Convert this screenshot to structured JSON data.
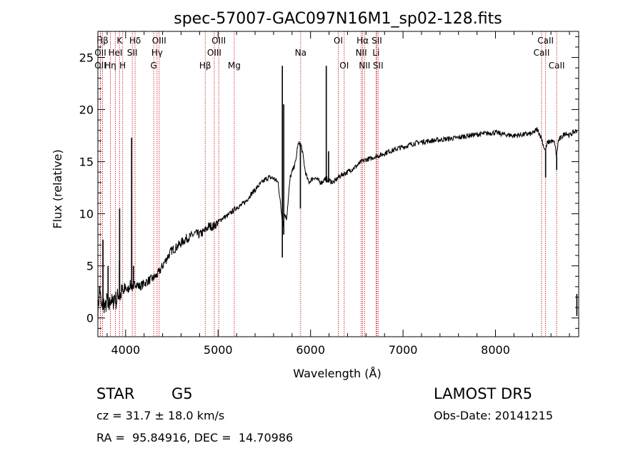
{
  "chart_data": {
    "type": "line",
    "title": "spec-57007-GAC097N16M1_sp02-128.fits",
    "xlabel": "Wavelength (Å)",
    "ylabel": "Flux (relative)",
    "xlim": [
      3700,
      8900
    ],
    "ylim": [
      -1.8,
      27.5
    ],
    "xticks": [
      4000,
      5000,
      6000,
      7000,
      8000
    ],
    "yticks": [
      0,
      5,
      10,
      15,
      20,
      25
    ],
    "grid": false,
    "series": [
      {
        "values": [
          [
            3700,
            0.5
          ],
          [
            3720,
            3.0
          ],
          [
            3740,
            0.8
          ],
          [
            3760,
            1.5
          ],
          [
            3780,
            0.9
          ],
          [
            3800,
            1.8
          ],
          [
            3820,
            1.0
          ],
          [
            3840,
            2.0
          ],
          [
            3860,
            1.2
          ],
          [
            3880,
            2.2
          ],
          [
            3900,
            1.5
          ],
          [
            3920,
            2.4
          ],
          [
            3940,
            2.0
          ],
          [
            3960,
            2.6
          ],
          [
            3980,
            2.3
          ],
          [
            4000,
            3.0
          ],
          [
            4020,
            2.6
          ],
          [
            4050,
            3.2
          ],
          [
            4080,
            2.8
          ],
          [
            4100,
            3.4
          ],
          [
            4150,
            3.0
          ],
          [
            4200,
            3.3
          ],
          [
            4250,
            3.6
          ],
          [
            4300,
            3.8
          ],
          [
            4350,
            4.2
          ],
          [
            4400,
            5.0
          ],
          [
            4450,
            5.8
          ],
          [
            4500,
            6.5
          ],
          [
            4550,
            6.8
          ],
          [
            4600,
            7.2
          ],
          [
            4650,
            7.6
          ],
          [
            4700,
            7.8
          ],
          [
            4750,
            8.1
          ],
          [
            4800,
            8.0
          ],
          [
            4850,
            8.3
          ],
          [
            4900,
            8.8
          ],
          [
            4950,
            8.8
          ],
          [
            5000,
            9.2
          ],
          [
            5050,
            9.6
          ],
          [
            5100,
            9.8
          ],
          [
            5150,
            10.2
          ],
          [
            5200,
            10.6
          ],
          [
            5250,
            10.8
          ],
          [
            5300,
            11.2
          ],
          [
            5350,
            11.8
          ],
          [
            5400,
            12.3
          ],
          [
            5450,
            12.8
          ],
          [
            5500,
            13.2
          ],
          [
            5550,
            13.5
          ],
          [
            5600,
            13.4
          ],
          [
            5650,
            13.0
          ],
          [
            5680,
            10.5
          ],
          [
            5700,
            9.0
          ],
          [
            5720,
            10.0
          ],
          [
            5740,
            9.5
          ],
          [
            5760,
            11.5
          ],
          [
            5780,
            13.5
          ],
          [
            5800,
            14.0
          ],
          [
            5820,
            14.5
          ],
          [
            5840,
            15.0
          ],
          [
            5860,
            16.5
          ],
          [
            5880,
            16.8
          ],
          [
            5900,
            16.5
          ],
          [
            5920,
            15.5
          ],
          [
            5940,
            14.2
          ],
          [
            5960,
            13.5
          ],
          [
            5980,
            13.0
          ],
          [
            6000,
            13.2
          ],
          [
            6040,
            13.5
          ],
          [
            6080,
            13.2
          ],
          [
            6120,
            13.0
          ],
          [
            6160,
            13.4
          ],
          [
            6200,
            13.2
          ],
          [
            6250,
            13.0
          ],
          [
            6300,
            13.5
          ],
          [
            6350,
            13.8
          ],
          [
            6400,
            14.0
          ],
          [
            6450,
            14.3
          ],
          [
            6500,
            14.6
          ],
          [
            6550,
            15.0
          ],
          [
            6600,
            15.2
          ],
          [
            6650,
            15.3
          ],
          [
            6700,
            15.5
          ],
          [
            6750,
            15.6
          ],
          [
            6800,
            15.8
          ],
          [
            6850,
            16.0
          ],
          [
            6900,
            16.1
          ],
          [
            6950,
            16.3
          ],
          [
            7000,
            16.4
          ],
          [
            7100,
            16.7
          ],
          [
            7200,
            16.9
          ],
          [
            7300,
            17.0
          ],
          [
            7400,
            17.1
          ],
          [
            7500,
            17.2
          ],
          [
            7600,
            17.3
          ],
          [
            7700,
            17.5
          ],
          [
            7800,
            17.6
          ],
          [
            7900,
            17.7
          ],
          [
            8000,
            17.8
          ],
          [
            8100,
            17.6
          ],
          [
            8200,
            17.5
          ],
          [
            8300,
            17.6
          ],
          [
            8400,
            17.7
          ],
          [
            8450,
            18.1
          ],
          [
            8480,
            17.6
          ],
          [
            8500,
            17.2
          ],
          [
            8520,
            16.5
          ],
          [
            8540,
            16.0
          ],
          [
            8560,
            16.8
          ],
          [
            8600,
            17.0
          ],
          [
            8640,
            16.8
          ],
          [
            8660,
            15.5
          ],
          [
            8680,
            17.0
          ],
          [
            8720,
            17.4
          ],
          [
            8760,
            17.8
          ],
          [
            8800,
            17.5
          ],
          [
            8840,
            17.8
          ],
          [
            8880,
            18.0
          ]
        ]
      }
    ],
    "spikes": [
      [
        3755,
        0.8,
        7.5
      ],
      [
        3810,
        1.0,
        5.0
      ],
      [
        3935,
        2.0,
        10.5
      ],
      [
        4065,
        2.8,
        17.3
      ],
      [
        4085,
        2.8,
        5.0
      ],
      [
        5695,
        5.8,
        24.2
      ],
      [
        5710,
        8.0,
        20.5
      ],
      [
        6170,
        13.0,
        24.2
      ],
      [
        6195,
        13.0,
        16.0
      ],
      [
        8880,
        0.2,
        2.3
      ]
    ],
    "absorptions": [
      [
        3933,
        5.5
      ],
      [
        5890,
        10.5
      ],
      [
        8542,
        13.5
      ],
      [
        8662,
        14.2
      ]
    ],
    "lines": [
      {
        "label": "Hβ",
        "x": 3750,
        "row": 0
      },
      {
        "label": "OII",
        "x": 3727,
        "row": 1
      },
      {
        "label": "OII",
        "x": 3727,
        "row": 2
      },
      {
        "label": "K",
        "x": 3934,
        "row": 0
      },
      {
        "label": "HeI",
        "x": 3889,
        "row": 1
      },
      {
        "label": "Hη",
        "x": 3835,
        "row": 2
      },
      {
        "label": "Hδ",
        "x": 4102,
        "row": 0
      },
      {
        "label": "SII",
        "x": 4072,
        "row": 1
      },
      {
        "label": "H",
        "x": 3968,
        "row": 2
      },
      {
        "label": "OIII",
        "x": 4363,
        "row": 0
      },
      {
        "label": "Hγ",
        "x": 4340,
        "row": 1
      },
      {
        "label": "G",
        "x": 4304,
        "row": 2
      },
      {
        "label": "OIII",
        "x": 5007,
        "row": 0
      },
      {
        "label": "OIII",
        "x": 4959,
        "row": 1
      },
      {
        "label": "Hβ",
        "x": 4861,
        "row": 2
      },
      {
        "label": "Mg",
        "x": 5175,
        "row": 2
      },
      {
        "label": "Na",
        "x": 5893,
        "row": 1
      },
      {
        "label": "OI",
        "x": 6300,
        "row": 0
      },
      {
        "label": "OI",
        "x": 6364,
        "row": 2
      },
      {
        "label": "Hα",
        "x": 6563,
        "row": 0
      },
      {
        "label": "NII",
        "x": 6548,
        "row": 1
      },
      {
        "label": "NII",
        "x": 6584,
        "row": 2
      },
      {
        "label": "SII",
        "x": 6717,
        "row": 0
      },
      {
        "label": "Li",
        "x": 6708,
        "row": 1
      },
      {
        "label": "SII",
        "x": 6731,
        "row": 2
      },
      {
        "label": "CaII",
        "x": 8542,
        "row": 0
      },
      {
        "label": "CaII",
        "x": 8498,
        "row": 1
      },
      {
        "label": "CaII",
        "x": 8662,
        "row": 2
      }
    ]
  },
  "info": {
    "class": "STAR",
    "subclass": "G5",
    "survey": "LAMOST DR5",
    "cz": "cz = 31.7 ± 18.0 km/s",
    "obs_date": "Obs-Date: 20141215",
    "radec": "RA =  95.84916, DEC =  14.70986"
  },
  "colors": {
    "spectrum": "#000000",
    "line_marker": "#c80000",
    "axes": "#000000"
  }
}
